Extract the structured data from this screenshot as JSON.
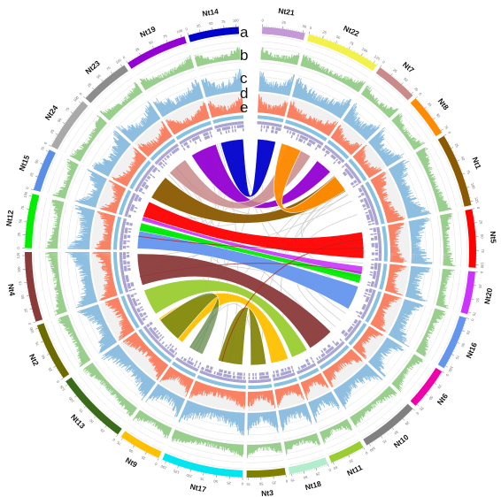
{
  "track_labels": [
    "a",
    "b",
    "c",
    "d",
    "e"
  ],
  "chromosomes": [
    {
      "name": "Nt21",
      "color": "#c39ad6",
      "ticks": [
        "0",
        "25",
        "50"
      ]
    },
    {
      "name": "Nt22",
      "color": "#f2f24a",
      "ticks": [
        "0",
        "25",
        "50",
        "75",
        "100",
        "125"
      ]
    },
    {
      "name": "Nt7",
      "color": "#c98a8a",
      "ticks": [
        "0",
        "25",
        "50",
        "75"
      ]
    },
    {
      "name": "Nt8",
      "color": "#ff8c00",
      "ticks": [
        "0",
        "25",
        "50",
        "75"
      ]
    },
    {
      "name": "Nt1",
      "color": "#8b5a00",
      "ticks": [
        "0",
        "25",
        "50",
        "75",
        "100",
        "125"
      ]
    },
    {
      "name": "Nt5",
      "color": "#ff0000",
      "ticks": [
        "0",
        "25",
        "50",
        "75",
        "100"
      ]
    },
    {
      "name": "Nt20",
      "color": "#cc33ff",
      "ticks": [
        "0",
        "25",
        "50",
        "75"
      ]
    },
    {
      "name": "Nt16",
      "color": "#6495ed",
      "ticks": [
        "0",
        "25",
        "50",
        "75",
        "100"
      ]
    },
    {
      "name": "Nt6",
      "color": "#ee00aa",
      "ticks": [
        "0",
        "25",
        "50",
        "75"
      ]
    },
    {
      "name": "Nt10",
      "color": "#808080",
      "ticks": [
        "0",
        "25",
        "50",
        "75",
        "100"
      ]
    },
    {
      "name": "Nt11",
      "color": "#9acd32",
      "ticks": [
        "0",
        "25",
        "50"
      ]
    },
    {
      "name": "Nt18",
      "color": "#b0eecd",
      "ticks": [
        "0",
        "25",
        "50",
        "75"
      ]
    },
    {
      "name": "Nt3",
      "color": "#808000",
      "ticks": [
        "0",
        "25",
        "50",
        "75"
      ]
    },
    {
      "name": "Nt17",
      "color": "#00e5ee",
      "ticks": [
        "0",
        "25",
        "50",
        "75",
        "100",
        "125",
        "150"
      ]
    },
    {
      "name": "Nt9",
      "color": "#ffc000",
      "ticks": [
        "0",
        "25",
        "50",
        "75"
      ]
    },
    {
      "name": "Nt13",
      "color": "#3a6b1a",
      "ticks": [
        "0",
        "25",
        "50",
        "75",
        "100",
        "125"
      ]
    },
    {
      "name": "Nt2",
      "color": "#6b6b00",
      "ticks": [
        "0",
        "25",
        "50",
        "75",
        "100"
      ]
    },
    {
      "name": "Nt4",
      "color": "#8b3a3a",
      "ticks": [
        "0",
        "25",
        "50",
        "75",
        "100",
        "125"
      ]
    },
    {
      "name": "Nt12",
      "color": "#00ee00",
      "ticks": [
        "0",
        "25",
        "50",
        "75",
        "100"
      ]
    },
    {
      "name": "Nt15",
      "color": "#5b8ee6",
      "ticks": [
        "0",
        "25",
        "50",
        "75"
      ]
    },
    {
      "name": "Nt24",
      "color": "#a9a9a9",
      "ticks": [
        "0",
        "25",
        "50",
        "75",
        "100"
      ]
    },
    {
      "name": "Nt23",
      "color": "#8c8c8c",
      "ticks": [
        "0",
        "25",
        "50",
        "75",
        "100"
      ]
    },
    {
      "name": "Nt19",
      "color": "#9400d3",
      "ticks": [
        "0",
        "25",
        "50",
        "75",
        "100"
      ]
    },
    {
      "name": "Nt14",
      "color": "#0000cd",
      "ticks": [
        "0",
        "25",
        "50",
        "75",
        "100"
      ]
    }
  ],
  "colors": {
    "gc_track": "#98cf8c",
    "gene_track": "#8fbfe0",
    "repeat_track": "#fa8264",
    "marker_track": "#aaa4d4",
    "inner_ring": "#87c3e0"
  }
}
